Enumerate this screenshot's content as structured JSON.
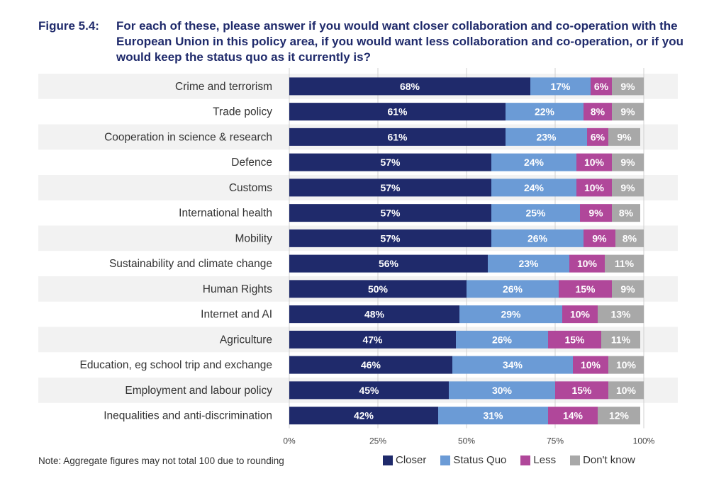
{
  "figure": {
    "label": "Figure 5.4:",
    "text": "For each of these, please answer if you would want closer collaboration and co-operation with the European Union in this policy area, if you would want less collaboration and co-operation, or if you would keep the status quo as it currently is?"
  },
  "note": "Note: Aggregate figures may not total 100 due to rounding",
  "colors": {
    "closer": "#1f2a6b",
    "status_quo": "#6b9bd6",
    "less": "#b0479a",
    "dont_know": "#a8a8a8",
    "row_band": "#f2f2f2",
    "grid": "#d0d0d0"
  },
  "legend": [
    {
      "key": "closer",
      "label": "Closer"
    },
    {
      "key": "status_quo",
      "label": "Status Quo"
    },
    {
      "key": "less",
      "label": "Less"
    },
    {
      "key": "dont_know",
      "label": "Don't know"
    }
  ],
  "chart_data": {
    "type": "bar",
    "orientation": "horizontal",
    "stacked": true,
    "title": "For each of these, please answer if you would want closer collaboration and co-operation with the European Union in this policy area, if you would want less collaboration and co-operation, or if you would keep the status quo as it currently is?",
    "categories": [
      "Crime and terrorism",
      "Trade policy",
      "Cooperation in science & research",
      "Defence",
      "Customs",
      "International health",
      "Mobility",
      "Sustainability and climate change",
      "Human Rights",
      "Internet and AI",
      "Agriculture",
      "Education, eg school trip and exchange",
      "Employment and labour policy",
      "Inequalities and anti-discrimination"
    ],
    "series": [
      {
        "name": "Closer",
        "key": "closer",
        "values": [
          68,
          61,
          61,
          57,
          57,
          57,
          57,
          56,
          50,
          48,
          47,
          46,
          45,
          42
        ]
      },
      {
        "name": "Status Quo",
        "key": "status_quo",
        "values": [
          17,
          22,
          23,
          24,
          24,
          25,
          26,
          23,
          26,
          29,
          26,
          34,
          30,
          31
        ]
      },
      {
        "name": "Less",
        "key": "less",
        "values": [
          6,
          8,
          6,
          10,
          10,
          9,
          9,
          10,
          15,
          10,
          15,
          10,
          15,
          14
        ]
      },
      {
        "name": "Don't know",
        "key": "dont_know",
        "values": [
          9,
          9,
          9,
          9,
          9,
          8,
          8,
          11,
          9,
          13,
          11,
          10,
          10,
          12
        ]
      }
    ],
    "xlim": [
      0,
      100
    ],
    "xticks": [
      "0%",
      "25%",
      "50%",
      "75%",
      "100%"
    ],
    "value_suffix": "%",
    "legend_position": "bottom-right"
  }
}
